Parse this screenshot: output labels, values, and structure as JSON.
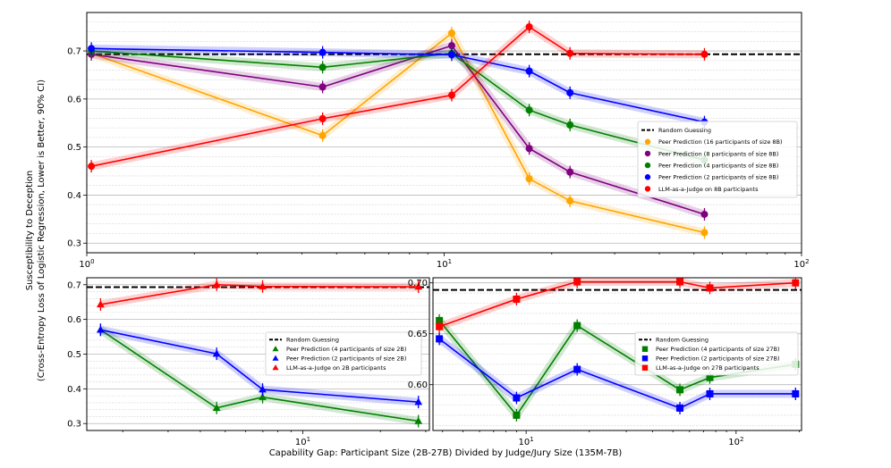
{
  "figure": {
    "ylabel_line1": "Susceptibility to Deception",
    "ylabel_line2": "(Cross-Entropy Loss of Logistic Regression, Lower is Better, 90% CI)",
    "xlabel": "Capability Gap: Participant Size (2B-27B) Divided by Judge/Jury Size (135M-7B)"
  },
  "colors": {
    "orange": "#ffa500",
    "purple": "#800080",
    "green": "#008000",
    "blue": "#0000ff",
    "red": "#ff0000",
    "baseline": "#000000"
  },
  "chart_data": [
    {
      "type": "line",
      "xscale": "log",
      "xlim": [
        1,
        100
      ],
      "ylim": [
        0.28,
        0.78
      ],
      "xticks": [
        1,
        10,
        100
      ],
      "xticklabels": [
        "10^0",
        "10^1",
        "10^2"
      ],
      "yticks": [
        0.3,
        0.4,
        0.5,
        0.6,
        0.7
      ],
      "yticklabels": [
        "0.3",
        "0.4",
        "0.5",
        "0.6",
        "0.7"
      ],
      "grid": true,
      "legend_loc": "center-right",
      "baseline": {
        "name": "Random Guessing",
        "y": 0.693
      },
      "series": [
        {
          "name": "Peer Prediction (16 participants of size 8B)",
          "color": "orange",
          "marker": "circle",
          "x": [
            1.03,
            4.57,
            10.5,
            17.3,
            22.5,
            53.5
          ],
          "y": [
            0.695,
            0.524,
            0.737,
            0.434,
            0.388,
            0.322
          ]
        },
        {
          "name": "Peer Prediction (8 participants of size 8B)",
          "color": "purple",
          "marker": "circle",
          "x": [
            1.03,
            4.57,
            10.5,
            17.3,
            22.5,
            53.5
          ],
          "y": [
            0.693,
            0.625,
            0.711,
            0.497,
            0.448,
            0.36
          ]
        },
        {
          "name": "Peer Prediction (4 participants of size 8B)",
          "color": "green",
          "marker": "circle",
          "x": [
            1.03,
            4.57,
            10.5,
            17.3,
            22.5,
            53.5
          ],
          "y": [
            0.7,
            0.666,
            0.695,
            0.577,
            0.546,
            0.473
          ]
        },
        {
          "name": "Peer Prediction (2 participants of size 8B)",
          "color": "blue",
          "marker": "circle",
          "x": [
            1.03,
            4.57,
            10.5,
            17.3,
            22.5,
            53.5
          ],
          "y": [
            0.705,
            0.697,
            0.692,
            0.658,
            0.613,
            0.552
          ]
        },
        {
          "name": "LLM-as-a-Judge on 8B participants",
          "color": "red",
          "marker": "circle",
          "x": [
            1.03,
            4.57,
            10.5,
            17.3,
            22.5,
            53.5
          ],
          "y": [
            0.46,
            0.559,
            0.608,
            0.75,
            0.695,
            0.693
          ]
        }
      ]
    },
    {
      "type": "line",
      "xscale": "log",
      "xlim": [
        1.45,
        31
      ],
      "ylim": [
        0.28,
        0.72
      ],
      "xticks": [
        10
      ],
      "xticklabels": [
        "10^1"
      ],
      "yticks": [
        0.3,
        0.4,
        0.5,
        0.6,
        0.7
      ],
      "yticklabels": [
        "0.3",
        "0.4",
        "0.5",
        "0.6",
        "0.7"
      ],
      "grid": true,
      "legend_loc": "center-right",
      "baseline": {
        "name": "Random Guessing",
        "y": 0.693
      },
      "series": [
        {
          "name": "Peer Prediction (4 participants of size 2B)",
          "color": "green",
          "marker": "triangle",
          "x": [
            1.64,
            4.63,
            6.98,
            28.1
          ],
          "y": [
            0.57,
            0.345,
            0.376,
            0.307
          ]
        },
        {
          "name": "Peer Prediction (2 participants of size 2B)",
          "color": "blue",
          "marker": "triangle",
          "x": [
            1.64,
            4.63,
            6.98,
            28.1
          ],
          "y": [
            0.57,
            0.501,
            0.398,
            0.362
          ]
        },
        {
          "name": "LLM-as-a-Judge on 2B participants",
          "color": "red",
          "marker": "triangle",
          "x": [
            1.64,
            4.63,
            6.98,
            28.1
          ],
          "y": [
            0.643,
            0.7,
            0.695,
            0.694
          ]
        }
      ]
    },
    {
      "type": "line",
      "xscale": "log",
      "xlim": [
        3.6,
        205
      ],
      "ylim": [
        0.555,
        0.705
      ],
      "xticks": [
        10,
        100
      ],
      "xticklabels": [
        "10^1",
        "10^2"
      ],
      "yticks": [
        0.6,
        0.65,
        0.7
      ],
      "yticklabels": [
        "0.60",
        "0.65",
        "0.70"
      ],
      "grid": true,
      "legend_loc": "center-right",
      "baseline": {
        "name": "Random Guessing",
        "y": 0.693
      },
      "series": [
        {
          "name": "Peer Prediction (4 participants of size 27B)",
          "color": "green",
          "marker": "square",
          "x": [
            3.86,
            9.0,
            17.5,
            54.0,
            75.0,
            192.0
          ],
          "y": [
            0.663,
            0.57,
            0.658,
            0.595,
            0.607,
            0.62
          ]
        },
        {
          "name": "Peer Prediction (2 participants of size 27B)",
          "color": "blue",
          "marker": "square",
          "x": [
            3.86,
            9.0,
            17.5,
            54.0,
            75.0,
            192.0
          ],
          "y": [
            0.645,
            0.587,
            0.615,
            0.577,
            0.591,
            0.591
          ]
        },
        {
          "name": "LLM-as-a-Judge on 27B participants",
          "color": "red",
          "marker": "square",
          "x": [
            3.86,
            9.0,
            17.5,
            54.0,
            75.0,
            192.0
          ],
          "y": [
            0.657,
            0.684,
            0.701,
            0.701,
            0.695,
            0.7
          ]
        }
      ]
    }
  ]
}
